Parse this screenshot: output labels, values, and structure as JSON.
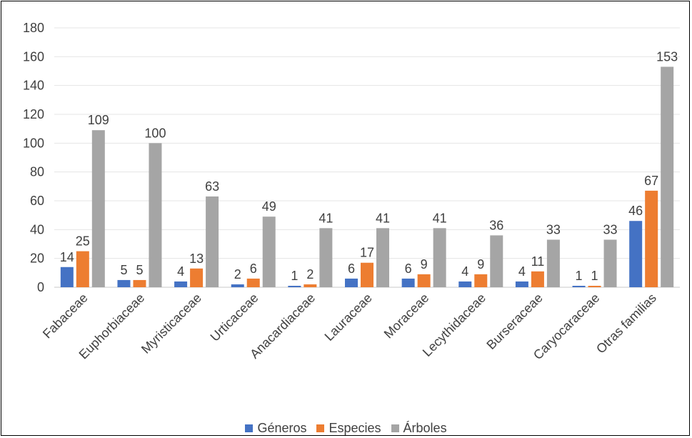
{
  "chart_data": {
    "type": "bar",
    "categories": [
      "Fabaceae",
      "Euphorbiaceae",
      "Myristicaceae",
      "Urticaceae",
      "Anacardiaceae",
      "Lauraceae",
      "Moraceae",
      "Lecythidaceae",
      "Burseraceae",
      "Caryocaraceae",
      "Otras familias"
    ],
    "series": [
      {
        "name": "Géneros",
        "color": "#4472C4",
        "values": [
          14,
          5,
          4,
          2,
          1,
          6,
          6,
          4,
          4,
          1,
          46
        ]
      },
      {
        "name": "Especies",
        "color": "#ED7D31",
        "values": [
          25,
          5,
          13,
          6,
          2,
          17,
          9,
          9,
          11,
          1,
          67
        ]
      },
      {
        "name": "Árboles",
        "color": "#A5A5A5",
        "values": [
          109,
          100,
          63,
          49,
          41,
          41,
          41,
          36,
          33,
          33,
          153
        ]
      }
    ],
    "ylim": [
      0,
      180
    ],
    "yticks": [
      0,
      20,
      40,
      60,
      80,
      100,
      120,
      140,
      160,
      180
    ],
    "grid": true,
    "legend_position": "bottom",
    "data_labels": true,
    "title": "",
    "xlabel": "",
    "ylabel": ""
  }
}
